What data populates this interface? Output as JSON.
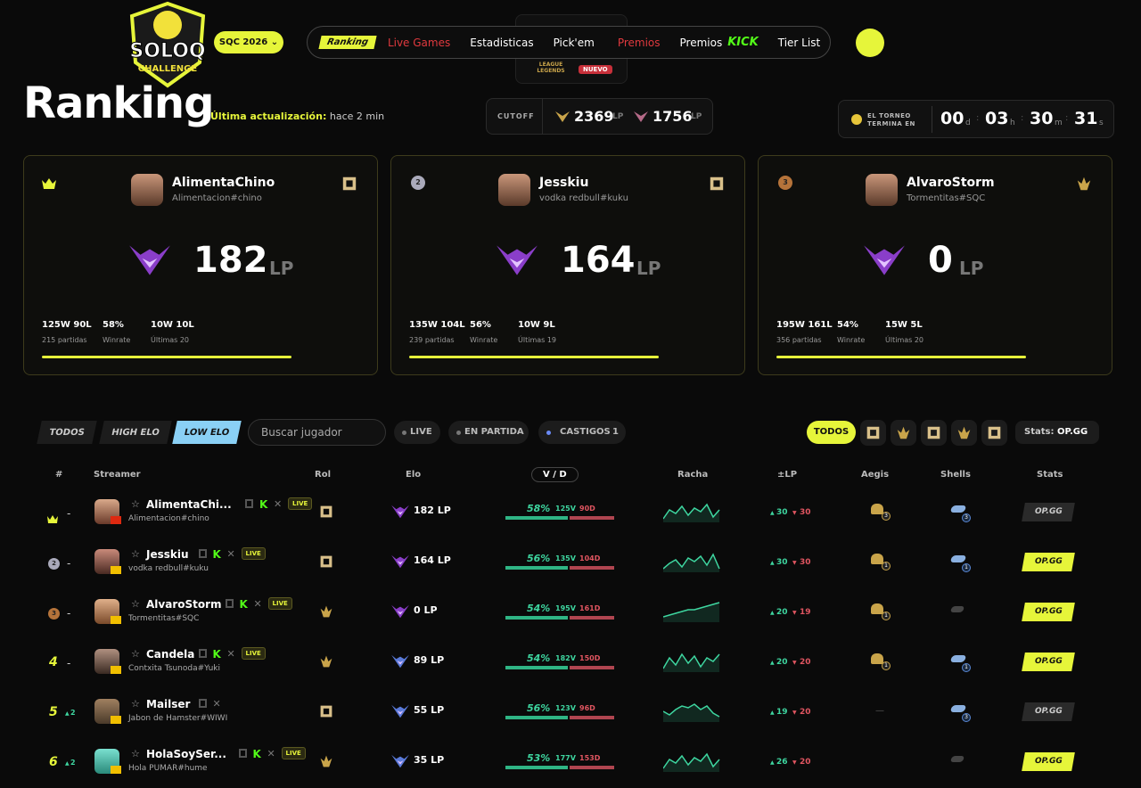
{
  "header": {
    "logo_top": "SOLOQ",
    "logo_bottom": "CHALLENGE",
    "season": "SQC 2026",
    "nav": [
      "Ranking",
      "Live Games",
      "Estadisticas",
      "Pick'em",
      "Premios",
      "Premios",
      "Tier List"
    ],
    "nav_badge": "KICK",
    "dropdown_label": "LEAGUE LEGENDS",
    "dropdown_badge": "NUEVO"
  },
  "title": "Ranking",
  "update_label": "Última actualización:",
  "update_value": "hace 2 min",
  "cutoff": {
    "label": "CUTOFF",
    "values": [
      "2369",
      "1756"
    ],
    "unit": "LP"
  },
  "timer": {
    "label": "EL TORNEO TERMINA EN",
    "parts": [
      {
        "value": "00",
        "unit": "d"
      },
      {
        "value": "03",
        "unit": "h"
      },
      {
        "value": "30",
        "unit": "m"
      },
      {
        "value": "31",
        "unit": "s"
      }
    ]
  },
  "top_cards": [
    {
      "medal": null,
      "name": "AlimentaChino",
      "tag": "Alimentacion#chino",
      "lp": "182",
      "lp_unit": "LP",
      "record": "125W 90L",
      "games": "215 partidas",
      "winrate": "58%",
      "winrate_label": "Winrate",
      "recent": "10W 10L",
      "recent_label": "Últimas 20"
    },
    {
      "medal": "2",
      "name": "Jesskiu",
      "tag": "vodka redbull#kuku",
      "lp": "164",
      "lp_unit": "LP",
      "record": "135W 104L",
      "games": "239 partidas",
      "winrate": "56%",
      "winrate_label": "Winrate",
      "recent": "10W 9L",
      "recent_label": "Últimas 19"
    },
    {
      "medal": "3",
      "name": "AlvaroStorm",
      "tag": "Tormentitas#SQC",
      "lp": "0",
      "lp_unit": "LP",
      "record": "195W 161L",
      "games": "356 partidas",
      "winrate": "54%",
      "winrate_label": "Winrate",
      "recent": "15W 5L",
      "recent_label": "Últimas 20"
    }
  ],
  "filters": {
    "tabs": [
      "TODOS",
      "HIGH ELO",
      "LOW ELO"
    ],
    "search_placeholder": "Buscar jugador",
    "chips": [
      "LIVE",
      "EN PARTIDA",
      "CASTIGOS"
    ],
    "castigos_count": "1",
    "role_all": "TODOS",
    "stats_label": "Stats:",
    "stats_value": "OP.GG"
  },
  "table": {
    "headers": [
      "#",
      "Streamer",
      "Rol",
      "Elo",
      "V / D",
      "Racha",
      "±LP",
      "Aegis",
      "Shells",
      "Stats"
    ],
    "rows": [
      {
        "rank": null,
        "change": "-",
        "name": "AlimentaChi...",
        "tag": "Alimentacion#chino",
        "live": "LIVE",
        "elo": "182 LP",
        "winrate": "58%",
        "wins": "125V",
        "losses": "90D",
        "lp_up": "30",
        "lp_down": "30",
        "aegis": "3",
        "shells": "3",
        "stats": "OP.GG"
      },
      {
        "rank": "2",
        "change": "-",
        "name": "Jesskiu",
        "tag": "vodka redbull#kuku",
        "live": "LIVE",
        "elo": "164 LP",
        "winrate": "56%",
        "wins": "135V",
        "losses": "104D",
        "lp_up": "30",
        "lp_down": "30",
        "aegis": "1",
        "shells": "1",
        "stats": "OP.GG"
      },
      {
        "rank": "3",
        "change": "-",
        "name": "AlvaroStorm",
        "tag": "Tormentitas#SQC",
        "live": "LIVE",
        "elo": "0 LP",
        "winrate": "54%",
        "wins": "195V",
        "losses": "161D",
        "lp_up": "20",
        "lp_down": "19",
        "aegis": "1",
        "shells": null,
        "stats": "OP.GG"
      },
      {
        "rank": "4",
        "change": "-",
        "name": "Candela",
        "tag": "Contxita Tsunoda#Yuki",
        "live": "LIVE",
        "elo": "89 LP",
        "winrate": "54%",
        "wins": "182V",
        "losses": "150D",
        "lp_up": "20",
        "lp_down": "20",
        "aegis": "1",
        "shells": "1",
        "stats": "OP.GG"
      },
      {
        "rank": "5",
        "change": "2",
        "name": "Mailser",
        "tag": "Jabon de Hamster#WIWI",
        "live": null,
        "elo": "55 LP",
        "winrate": "56%",
        "wins": "123V",
        "losses": "96D",
        "lp_up": "19",
        "lp_down": "20",
        "aegis": "—",
        "shells": "3",
        "stats": "OP.GG"
      },
      {
        "rank": "6",
        "change": "2",
        "name": "HolaSoySer...",
        "tag": "Hola PUMAR#hume",
        "live": "LIVE",
        "elo": "35 LP",
        "winrate": "53%",
        "wins": "177V",
        "losses": "153D",
        "lp_up": "26",
        "lp_down": "20",
        "aegis": null,
        "shells": null,
        "stats": "OP.GG"
      }
    ]
  }
}
